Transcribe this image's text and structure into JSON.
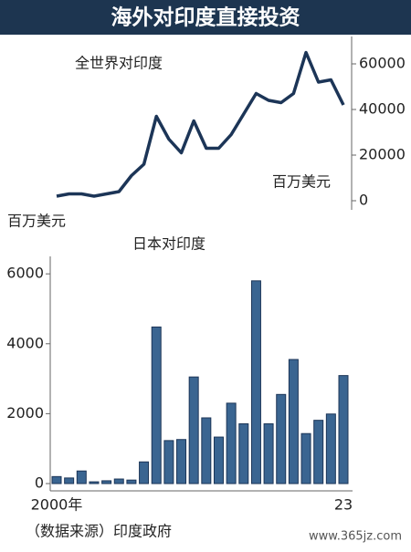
{
  "title": "海外对印度直接投资",
  "source": "（数据来源）印度政府",
  "watermark": "www.365jz.com",
  "chart_data": [
    {
      "type": "line",
      "title": "全世界对印度",
      "unit": "百万美元",
      "color": "#1c3557",
      "values": [
        2000,
        3000,
        3000,
        2000,
        3000,
        4000,
        11000,
        16000,
        37000,
        27000,
        21000,
        35000,
        23000,
        23000,
        29000,
        38000,
        47000,
        44000,
        43000,
        47000,
        65000,
        52000,
        53000,
        42000
      ],
      "ylim": [
        -4000,
        70000
      ],
      "yticks": [
        0,
        20000,
        40000,
        60000
      ],
      "axis": "right"
    },
    {
      "type": "bar",
      "title": "日本对印度",
      "unit": "百万美元",
      "color": "#3a6591",
      "categories": [
        "2000年",
        null,
        null,
        null,
        null,
        null,
        null,
        null,
        null,
        null,
        null,
        null,
        null,
        null,
        null,
        null,
        null,
        null,
        null,
        null,
        null,
        null,
        null,
        "23"
      ],
      "values": [
        200,
        160,
        360,
        50,
        80,
        130,
        100,
        620,
        4480,
        1230,
        1260,
        3050,
        1880,
        1330,
        2300,
        1710,
        5800,
        1710,
        2550,
        3550,
        1430,
        1810,
        1990,
        3090
      ],
      "ylim": [
        0,
        6500
      ],
      "yticks": [
        0,
        2000,
        4000,
        6000
      ],
      "axis": "left"
    }
  ]
}
